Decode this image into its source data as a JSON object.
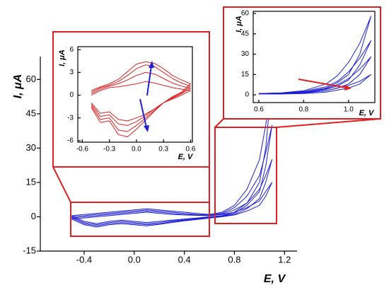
{
  "chart_data": [
    {
      "type": "line",
      "xlabel": "E, V",
      "ylabel": "I, μA",
      "x": [
        -0.5,
        -0.4,
        -0.3,
        -0.2,
        -0.1,
        0,
        0.1,
        0.2,
        0.3,
        0.4,
        0.5,
        0.6,
        0.7,
        0.8,
        0.9,
        1.0,
        1.05,
        1.1,
        1.05,
        1.0,
        0.9,
        0.8,
        0.7,
        0.6,
        0.5,
        0.4,
        0.3,
        0.2,
        0.1,
        0,
        -0.1,
        -0.2,
        -0.3,
        -0.4,
        -0.5
      ],
      "xlim": [
        -0.75,
        1.3
      ],
      "ylim": [
        -15,
        70
      ],
      "xticks": [
        -0.4,
        {
          "value": 0,
          "label": "0.0"
        },
        0.4,
        0.8,
        1.2
      ],
      "yticks": [
        -15,
        0,
        15,
        30,
        45,
        60
      ],
      "series": [
        {
          "color": "#1f1fd6",
          "values": [
            0.5,
            1,
            1.5,
            2,
            2.5,
            3,
            3.5,
            3,
            2.5,
            2,
            1.5,
            1,
            2,
            5,
            12,
            25,
            40,
            60,
            30,
            15,
            6,
            2,
            0.5,
            0,
            -0.5,
            -1,
            -1.5,
            -2,
            -2.5,
            -2,
            -1.5,
            -2,
            -3,
            -2,
            0.5
          ]
        },
        {
          "color": "#1f1fd6",
          "values": [
            0,
            0.5,
            1,
            1.5,
            2,
            2.5,
            3,
            2.5,
            2,
            1.5,
            1,
            0.8,
            1.5,
            4,
            9,
            18,
            28,
            40,
            22,
            11,
            5,
            1.5,
            0.3,
            -0.2,
            -0.8,
            -1.3,
            -1.8,
            -2.5,
            -3,
            -2.5,
            -2,
            -2.5,
            -3.5,
            -2.5,
            0
          ]
        },
        {
          "color": "#1f1fd6",
          "values": [
            -0.5,
            0,
            0.5,
            1,
            1.5,
            2,
            2.5,
            2,
            1.5,
            1,
            0.8,
            0.6,
            1.2,
            3,
            6,
            12,
            18,
            25,
            15,
            8,
            3.5,
            1,
            0.2,
            -0.4,
            -1,
            -1.6,
            -2.2,
            -3,
            -3.5,
            -3,
            -2.5,
            -3,
            -4,
            -3,
            -0.5
          ]
        },
        {
          "color": "#1f1fd6",
          "values": [
            -1,
            -0.5,
            0,
            0.5,
            1,
            1.5,
            2,
            1.5,
            1,
            0.8,
            0.6,
            0.5,
            1,
            2,
            4,
            7,
            11,
            15,
            9,
            5,
            2.5,
            0.8,
            0,
            -0.6,
            -1.2,
            -1.8,
            -2.5,
            -3.3,
            -4,
            -3.5,
            -3,
            -3.5,
            -4.5,
            -3.5,
            -1
          ]
        }
      ]
    },
    {
      "type": "line",
      "xlabel": "E, V",
      "ylabel": "I, μA",
      "x": [
        -0.5,
        -0.4,
        -0.3,
        -0.2,
        -0.1,
        0,
        0.1,
        0.2,
        0.3,
        0.4,
        0.5,
        0.6,
        0.5,
        0.4,
        0.3,
        0.2,
        0.1,
        0,
        -0.1,
        -0.2,
        -0.3,
        -0.4,
        -0.5
      ],
      "xlim": [
        -0.65,
        0.62
      ],
      "ylim": [
        -6.2,
        6.4
      ],
      "xticks": [
        -0.6,
        -0.3,
        {
          "value": 0,
          "label": "0.0"
        },
        0.3,
        0.6
      ],
      "yticks": [
        -6,
        -3,
        0,
        3,
        6
      ],
      "series": [
        {
          "color": "#e02020",
          "values": [
            0,
            0.6,
            1,
            1.1,
            1.3,
            1.5,
            1.8,
            1.6,
            1.3,
            1,
            0.8,
            0.6,
            0,
            -0.5,
            -1,
            -1.8,
            -2.5,
            -3,
            -3.4,
            -3.2,
            -2.2,
            -2.4,
            -1
          ]
        },
        {
          "color": "#e02020",
          "values": [
            0.2,
            0.8,
            1.2,
            1.5,
            2,
            2.6,
            3,
            2.8,
            2.2,
            1.6,
            1.2,
            0.9,
            0.2,
            -0.4,
            -1,
            -1.8,
            -2.7,
            -3.5,
            -4,
            -3.8,
            -2.6,
            -2.8,
            -1.2
          ]
        },
        {
          "color": "#e02020",
          "values": [
            0.4,
            1,
            1.3,
            1.8,
            2.6,
            3.5,
            4,
            3.8,
            3,
            2.2,
            1.6,
            1.2,
            0.3,
            -0.3,
            -1,
            -2,
            -3,
            -4,
            -4.8,
            -4.6,
            -3,
            -3.2,
            -1.4
          ]
        },
        {
          "color": "#e02020",
          "values": [
            0.6,
            1.1,
            1.5,
            2.1,
            3.1,
            4.1,
            4.4,
            4.2,
            3.5,
            2.6,
            2,
            1.5,
            0.4,
            -0.2,
            -1,
            -2.1,
            -3.3,
            -4.5,
            -5.5,
            -5.2,
            -3.4,
            -3.6,
            -1.6
          ]
        }
      ]
    },
    {
      "type": "line",
      "xlabel": "E, V",
      "ylabel": "I, μA",
      "x": [
        0.6,
        0.7,
        0.8,
        0.9,
        0.95,
        1.0,
        1.05,
        1.1,
        1.05,
        1.0,
        0.95,
        0.9,
        0.8,
        0.7,
        0.6
      ],
      "xlim": [
        0.575,
        1.117
      ],
      "ylim": [
        -5.7,
        61.6
      ],
      "xticks": [
        0.6,
        0.8,
        {
          "value": 1,
          "label": "1.0"
        }
      ],
      "yticks": [
        0,
        15,
        30,
        45,
        60
      ],
      "series": [
        {
          "color": "#1f1fd6",
          "values": [
            1,
            1.5,
            3,
            8,
            14,
            24,
            38,
            58,
            30,
            15,
            9,
            5,
            2,
            1,
            1
          ]
        },
        {
          "color": "#1f1fd6",
          "values": [
            1,
            1.3,
            2.5,
            6,
            10,
            17,
            27,
            40,
            22,
            11,
            6.5,
            4,
            1.6,
            0.8,
            0.8
          ]
        },
        {
          "color": "#1f1fd6",
          "values": [
            0.8,
            1.1,
            2,
            4.5,
            7.5,
            12,
            19,
            28,
            15,
            8,
            5,
            3,
            1.3,
            0.7,
            0.7
          ]
        },
        {
          "color": "#1f1fd6",
          "values": [
            0.6,
            0.9,
            1.5,
            3,
            5,
            7,
            10,
            15,
            8,
            5,
            3.5,
            2,
            1,
            0.6,
            0.6
          ]
        }
      ]
    }
  ]
}
